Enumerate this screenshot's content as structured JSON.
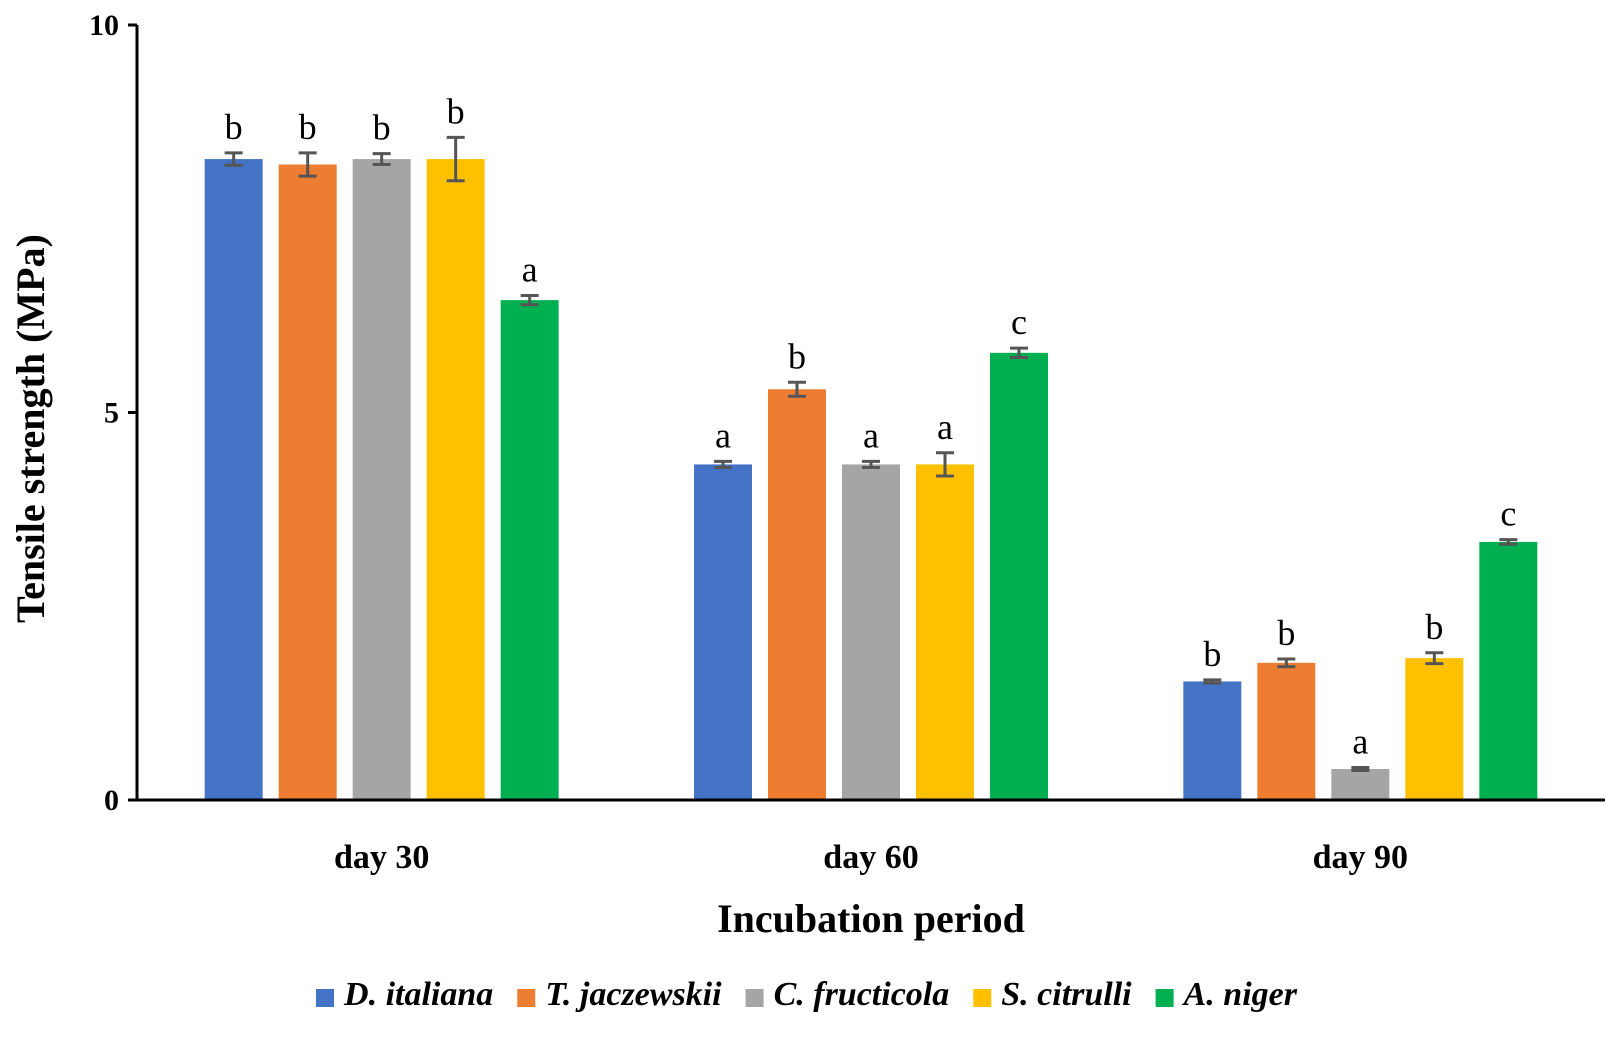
{
  "chart_data": {
    "type": "bar",
    "title": "",
    "xlabel": "Incubation period",
    "ylabel": "Tensile strength (MPa)",
    "ylim": [
      0,
      10
    ],
    "yticks": [
      "0",
      "5",
      "10"
    ],
    "ytick_values": [
      0,
      5,
      10
    ],
    "categories": [
      "day 30",
      "day 60",
      "day 90"
    ],
    "grid": false,
    "legend_position": "bottom",
    "series": [
      {
        "name": "D. italiana",
        "color": "#4472C4",
        "values": [
          8.27,
          4.33,
          1.53
        ],
        "errors": [
          0.08,
          0.04,
          0.02
        ],
        "labels": [
          "b",
          "a",
          "b"
        ]
      },
      {
        "name": "T. jaczewskii",
        "color": "#ED7D31",
        "values": [
          8.2,
          5.3,
          1.77
        ],
        "errors": [
          0.15,
          0.09,
          0.05
        ],
        "labels": [
          "b",
          "b",
          "b"
        ]
      },
      {
        "name": "C. fructicola",
        "color": "#A5A5A5",
        "values": [
          8.27,
          4.33,
          0.4
        ],
        "errors": [
          0.07,
          0.04,
          0.02
        ],
        "labels": [
          "b",
          "a",
          "a"
        ]
      },
      {
        "name": "S. citrulli",
        "color": "#FFC000",
        "values": [
          8.27,
          4.33,
          1.83
        ],
        "errors": [
          0.28,
          0.15,
          0.07
        ],
        "labels": [
          "b",
          "a",
          "b"
        ]
      },
      {
        "name": "A. niger",
        "color": "#00B050",
        "values": [
          6.45,
          5.77,
          3.33
        ],
        "errors": [
          0.06,
          0.06,
          0.03
        ],
        "labels": [
          "a",
          "c",
          "c"
        ]
      }
    ]
  }
}
